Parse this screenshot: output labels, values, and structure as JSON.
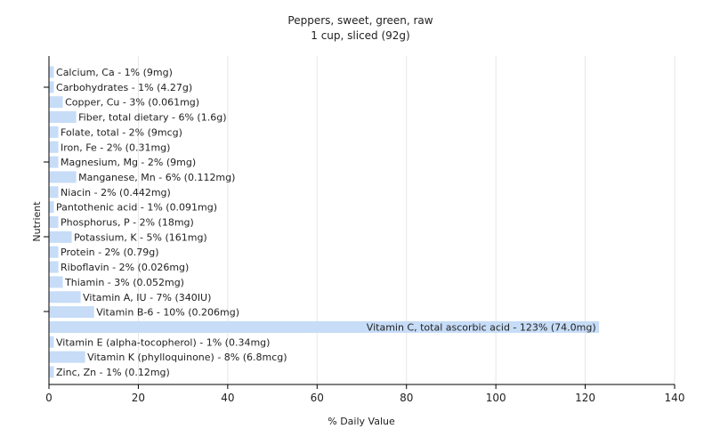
{
  "chart_data": {
    "type": "bar",
    "orientation": "horizontal",
    "title": "Peppers, sweet, green, raw",
    "subtitle": "1 cup, sliced (92g)",
    "xlabel": "% Daily Value",
    "ylabel": "Nutrient",
    "xlim": [
      0,
      140
    ],
    "xticks": [
      0,
      20,
      40,
      60,
      80,
      100,
      120,
      140
    ],
    "grid": true,
    "bar_color": "#c6dcf7",
    "categories": [
      "Calcium, Ca",
      "Carbohydrates",
      "Copper, Cu",
      "Fiber, total dietary",
      "Folate, total",
      "Iron, Fe",
      "Magnesium, Mg",
      "Manganese, Mn",
      "Niacin",
      "Pantothenic acid",
      "Phosphorus, P",
      "Potassium, K",
      "Protein",
      "Riboflavin",
      "Thiamin",
      "Vitamin A, IU",
      "Vitamin B-6",
      "Vitamin C, total ascorbic acid",
      "Vitamin E (alpha-tocopherol)",
      "Vitamin K (phylloquinone)",
      "Zinc, Zn"
    ],
    "values": [
      1,
      1,
      3,
      6,
      2,
      2,
      2,
      6,
      2,
      1,
      2,
      5,
      2,
      2,
      3,
      7,
      10,
      123,
      1,
      8,
      1
    ],
    "labels": [
      "Calcium, Ca - 1% (9mg)",
      "Carbohydrates - 1% (4.27g)",
      "Copper, Cu - 3% (0.061mg)",
      "Fiber, total dietary - 6% (1.6g)",
      "Folate, total - 2% (9mcg)",
      "Iron, Fe - 2% (0.31mg)",
      "Magnesium, Mg - 2% (9mg)",
      "Manganese, Mn - 6% (0.112mg)",
      "Niacin - 2% (0.442mg)",
      "Pantothenic acid - 1% (0.091mg)",
      "Phosphorus, P - 2% (18mg)",
      "Potassium, K - 5% (161mg)",
      "Protein - 2% (0.79g)",
      "Riboflavin - 2% (0.026mg)",
      "Thiamin - 3% (0.052mg)",
      "Vitamin A, IU - 7% (340IU)",
      "Vitamin B-6 - 10% (0.206mg)",
      "Vitamin C, total ascorbic acid - 123% (74.0mg)",
      "Vitamin E (alpha-tocopherol) - 1% (0.34mg)",
      "Vitamin K (phylloquinone) - 8% (6.8mcg)",
      "Zinc, Zn - 1% (0.12mg)"
    ]
  }
}
